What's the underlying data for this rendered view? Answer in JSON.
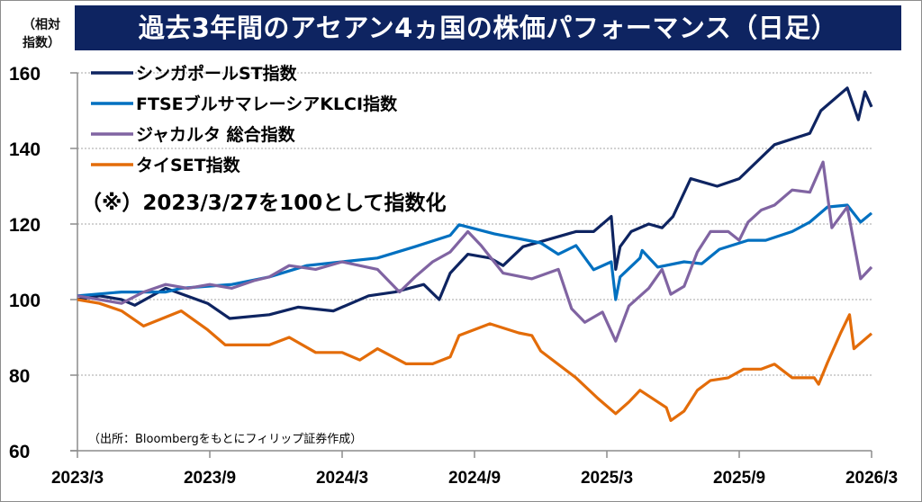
{
  "title": "過去3年間のアセアン4ヵ国の株価パフォーマンス（日足）",
  "y_unit_label": [
    "（相対",
    "指数）"
  ],
  "annotation": "（※）2023/3/27を100として指数化",
  "source": "（出所：Bloombergをもとにフィリップ証券作成）",
  "chart_data": {
    "type": "line",
    "title": "過去3年間のアセアン4ヵ国の株価パフォーマンス（日足）",
    "xlabel": "",
    "ylabel": "（相対指数）",
    "ylim": [
      60,
      160
    ],
    "yticks": [
      "160",
      "140",
      "120",
      "100",
      "80",
      "60"
    ],
    "ytick_values": [
      160,
      140,
      120,
      100,
      80,
      60
    ],
    "xlim_months": [
      0,
      36
    ],
    "xticks": [
      "2023/3",
      "2023/9",
      "2024/3",
      "2024/9",
      "2025/3",
      "2025/9",
      "2026/3"
    ],
    "xtick_months": [
      0,
      6,
      12,
      18,
      24,
      30,
      36
    ],
    "x_unit": "months since 2023/3/27",
    "grid": "horizontal dotted",
    "legend_position": "top-left",
    "series": [
      {
        "name": "シンガポールST指数",
        "color": "#0e2461",
        "x": [
          0,
          1,
          2,
          2.6,
          4,
          5.9,
          6.9,
          8.7,
          10,
          11.6,
          13.2,
          14.4,
          15.7,
          16.4,
          16.9,
          17.7,
          18.7,
          19.3,
          20.2,
          21.4,
          22.6,
          23.4,
          24,
          24.2,
          24.4,
          24.6,
          25.1,
          25.9,
          26.5,
          27,
          27.8,
          29,
          30,
          31.6,
          33.2,
          33.7,
          34.9,
          35.4,
          35.7,
          36
        ],
        "y": [
          100,
          101,
          100,
          98.5,
          103,
          99,
          95,
          96,
          98,
          97,
          101,
          102,
          104,
          100,
          107,
          112,
          111,
          109,
          114,
          116,
          118,
          118,
          121,
          122,
          108,
          114,
          118,
          120,
          119,
          122,
          132,
          130,
          132,
          141,
          144,
          150,
          156,
          147.6,
          155,
          151
        ]
      },
      {
        "name": "FTSEブルサマレーシアKLCI指数",
        "color": "#0070c0",
        "x": [
          0,
          2,
          4,
          4.7,
          7,
          8.7,
          10.4,
          12,
          13.6,
          15.3,
          16.9,
          17.3,
          18.9,
          21,
          21.8,
          22.6,
          23.4,
          24.2,
          24.4,
          24.6,
          25.5,
          25.6,
          26.3,
          27.5,
          28.3,
          29.1,
          30.4,
          31.2,
          32.4,
          33.2,
          34,
          34.9,
          35.5,
          36
        ],
        "y": [
          101,
          102,
          102,
          103,
          104,
          106,
          109,
          110,
          111,
          114,
          117,
          119.8,
          117.4,
          115,
          112,
          114.3,
          107.9,
          110,
          100,
          106,
          111,
          113,
          108.6,
          110,
          109.5,
          113.3,
          115.7,
          115.7,
          118,
          120.5,
          124.5,
          125,
          120.5,
          122.9
        ]
      },
      {
        "name": "ジャカルタ 総合指数",
        "color": "#8064a2",
        "x": [
          0,
          1,
          2,
          3,
          4,
          5,
          6,
          7,
          8,
          8.7,
          9.6,
          10.8,
          12,
          13.6,
          14.6,
          15.3,
          16.1,
          16.9,
          17.7,
          18.3,
          19.3,
          20.6,
          21.8,
          22.4,
          23,
          23.8,
          24.4,
          25,
          25.9,
          26.5,
          26.9,
          27.5,
          28.1,
          28.7,
          29.5,
          30,
          30.4,
          31,
          31.6,
          32.4,
          33.2,
          33.8,
          34.2,
          34.9,
          35.5,
          36
        ],
        "y": [
          101,
          100,
          99,
          102,
          104,
          103,
          104,
          103,
          105,
          106,
          109,
          108,
          110,
          108,
          102,
          106,
          110,
          112.6,
          118,
          114.3,
          107,
          105.5,
          108,
          97.6,
          94,
          96.7,
          89,
          98.3,
          103,
          108,
          101.4,
          103.5,
          112.6,
          118,
          118,
          115.7,
          120.5,
          123.7,
          125,
          129,
          128.4,
          136.4,
          119,
          124.5,
          105.5,
          108.6
        ]
      },
      {
        "name": "タイSET指数",
        "color": "#e36c09",
        "x": [
          0,
          1,
          2,
          3,
          4.7,
          5.9,
          6.7,
          8.7,
          9.6,
          10.8,
          12,
          12.8,
          13.6,
          14.9,
          16.1,
          16.9,
          17.3,
          18.7,
          20,
          20.6,
          21,
          22.6,
          23.6,
          24.4,
          25,
          25.5,
          26.7,
          26.9,
          27.5,
          28.1,
          28.7,
          29.5,
          30.2,
          31,
          31.6,
          32.4,
          33.4,
          33.6,
          34,
          34.6,
          35,
          35.2,
          36
        ],
        "y": [
          100,
          99,
          97,
          93,
          97,
          92,
          88,
          88,
          90,
          86,
          86,
          84,
          87,
          83,
          83,
          84.8,
          90.5,
          93.6,
          91.2,
          90.5,
          86.4,
          79.3,
          73.8,
          69.8,
          72.9,
          76,
          71.4,
          68,
          70.5,
          76,
          78.6,
          79.3,
          81.6,
          81.6,
          82.9,
          79.3,
          79.3,
          77.6,
          83.3,
          91.2,
          96,
          87,
          91
        ]
      }
    ]
  }
}
